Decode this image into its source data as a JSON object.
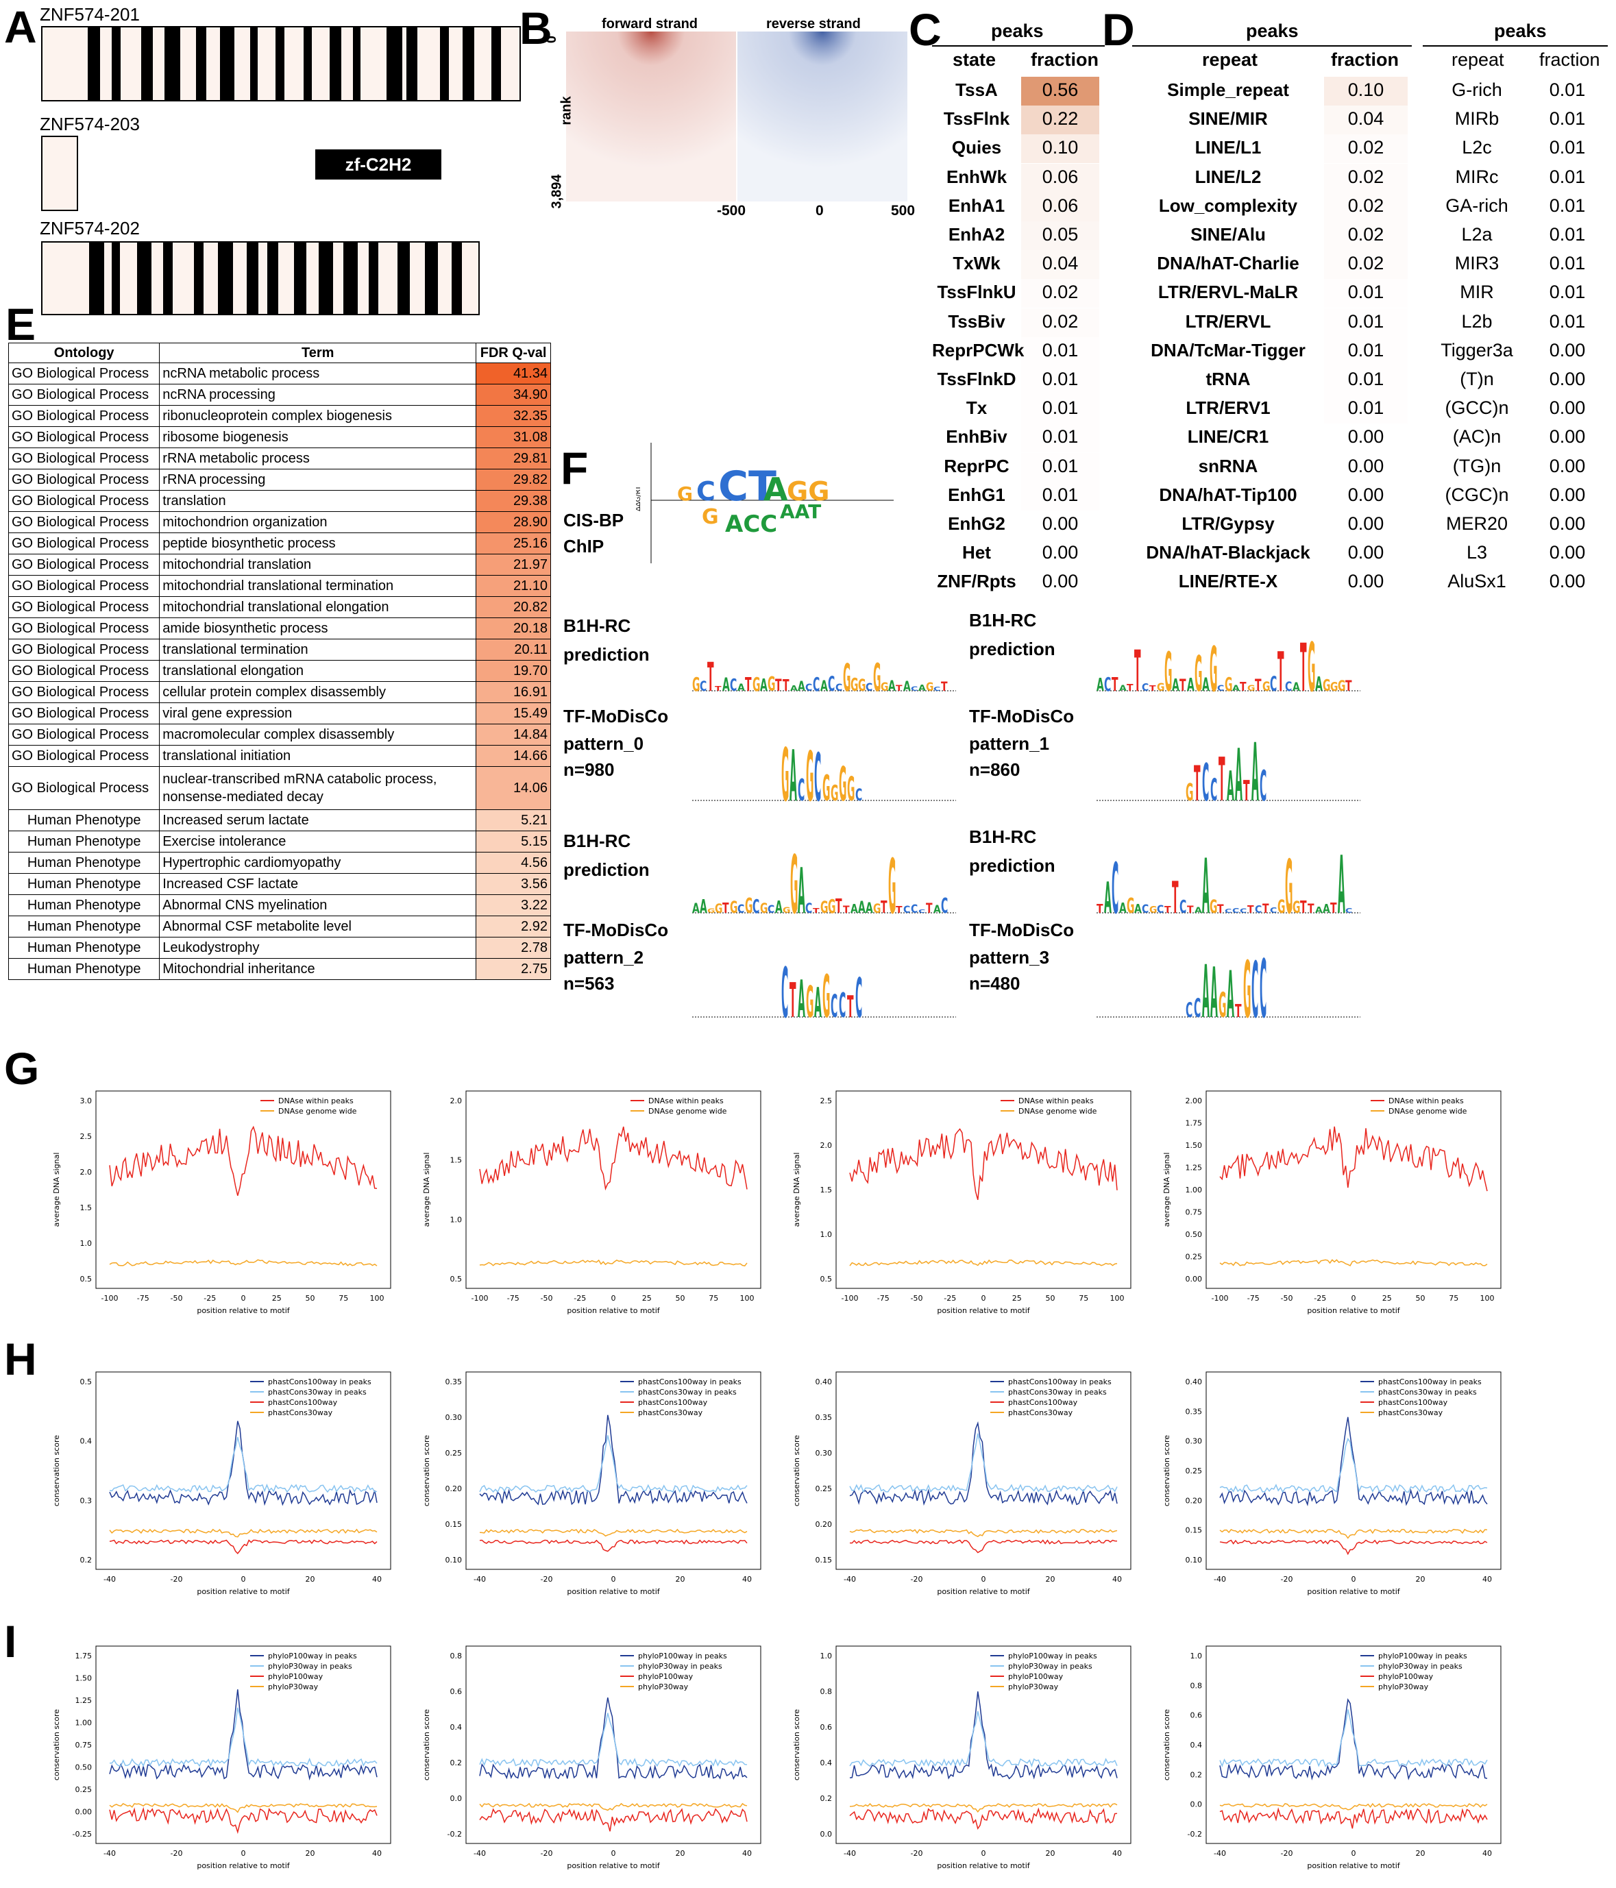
{
  "panel_letters": {
    "A": "A",
    "B": "B",
    "C": "C",
    "D": "D",
    "E": "E",
    "F": "F",
    "G": "G",
    "H": "H",
    "I": "I"
  },
  "panel_a": {
    "iso1": "ZNF574-201",
    "iso2": "ZNF574-203",
    "iso3": "ZNF574-202",
    "domain": "zf-C2H2",
    "fill": "#fdf3ee",
    "stripe": "#000000"
  },
  "panel_b": {
    "fwd": "forward strand",
    "rev": "reverse strand",
    "ylabel": "rank",
    "y0": "0",
    "ymax": "3,894",
    "xlabels": [
      "-500",
      "0",
      "500"
    ],
    "fwd_color": "#b03a2e",
    "rev_color": "#2e4f9a"
  },
  "panel_c": {
    "header": "peaks",
    "col1": "state",
    "col2": "fraction",
    "rows": [
      {
        "s": "TssA",
        "v": "0.56"
      },
      {
        "s": "TssFlnk",
        "v": "0.22"
      },
      {
        "s": "Quies",
        "v": "0.10"
      },
      {
        "s": "EnhWk",
        "v": "0.06"
      },
      {
        "s": "EnhA1",
        "v": "0.06"
      },
      {
        "s": "EnhA2",
        "v": "0.05"
      },
      {
        "s": "TxWk",
        "v": "0.04"
      },
      {
        "s": "TssFlnkU",
        "v": "0.02"
      },
      {
        "s": "TssBiv",
        "v": "0.02"
      },
      {
        "s": "ReprPCWk",
        "v": "0.01"
      },
      {
        "s": "TssFlnkD",
        "v": "0.01"
      },
      {
        "s": "Tx",
        "v": "0.01"
      },
      {
        "s": "EnhBiv",
        "v": "0.01"
      },
      {
        "s": "ReprPC",
        "v": "0.01"
      },
      {
        "s": "EnhG1",
        "v": "0.01"
      },
      {
        "s": "EnhG2",
        "v": "0.00"
      },
      {
        "s": "Het",
        "v": "0.00"
      },
      {
        "s": "ZNF/Rpts",
        "v": "0.00"
      }
    ]
  },
  "panel_d": {
    "header1": "peaks",
    "header2": "peaks",
    "col1": "repeat",
    "col2": "fraction",
    "left": [
      {
        "r": "Simple_repeat",
        "v": "0.10"
      },
      {
        "r": "SINE/MIR",
        "v": "0.04"
      },
      {
        "r": "LINE/L1",
        "v": "0.02"
      },
      {
        "r": "LINE/L2",
        "v": "0.02"
      },
      {
        "r": "Low_complexity",
        "v": "0.02"
      },
      {
        "r": "SINE/Alu",
        "v": "0.02"
      },
      {
        "r": "DNA/hAT-Charlie",
        "v": "0.02"
      },
      {
        "r": "LTR/ERVL-MaLR",
        "v": "0.01"
      },
      {
        "r": "LTR/ERVL",
        "v": "0.01"
      },
      {
        "r": "DNA/TcMar-Tigger",
        "v": "0.01"
      },
      {
        "r": "tRNA",
        "v": "0.01"
      },
      {
        "r": "LTR/ERV1",
        "v": "0.01"
      },
      {
        "r": "LINE/CR1",
        "v": "0.00"
      },
      {
        "r": "snRNA",
        "v": "0.00"
      },
      {
        "r": "DNA/hAT-Tip100",
        "v": "0.00"
      },
      {
        "r": "LTR/Gypsy",
        "v": "0.00"
      },
      {
        "r": "DNA/hAT-Blackjack",
        "v": "0.00"
      },
      {
        "r": "LINE/RTE-X",
        "v": "0.00"
      }
    ],
    "right": [
      {
        "r": "G-rich",
        "v": "0.01"
      },
      {
        "r": "MIRb",
        "v": "0.01"
      },
      {
        "r": "L2c",
        "v": "0.01"
      },
      {
        "r": "MIRc",
        "v": "0.01"
      },
      {
        "r": "GA-rich",
        "v": "0.01"
      },
      {
        "r": "L2a",
        "v": "0.01"
      },
      {
        "r": "MIR3",
        "v": "0.01"
      },
      {
        "r": "MIR",
        "v": "0.01"
      },
      {
        "r": "L2b",
        "v": "0.01"
      },
      {
        "r": "Tigger3a",
        "v": "0.00"
      },
      {
        "r": "(T)n",
        "v": "0.00"
      },
      {
        "r": "(GCC)n",
        "v": "0.00"
      },
      {
        "r": "(AC)n",
        "v": "0.00"
      },
      {
        "r": "(TG)n",
        "v": "0.00"
      },
      {
        "r": "(CGC)n",
        "v": "0.00"
      },
      {
        "r": "MER20",
        "v": "0.00"
      },
      {
        "r": "L3",
        "v": "0.00"
      },
      {
        "r": "AluSx1",
        "v": "0.00"
      }
    ]
  },
  "panel_e": {
    "headers": [
      "Ontology",
      "Term",
      "FDR Q-val"
    ],
    "rows": [
      [
        "GO Biological Process",
        "ncRNA metabolic process",
        "41.34"
      ],
      [
        "GO Biological Process",
        "ncRNA processing",
        "34.90"
      ],
      [
        "GO Biological Process",
        "ribonucleoprotein complex biogenesis",
        "32.35"
      ],
      [
        "GO Biological Process",
        "ribosome biogenesis",
        "31.08"
      ],
      [
        "GO Biological Process",
        "rRNA metabolic process",
        "29.81"
      ],
      [
        "GO Biological Process",
        "rRNA processing",
        "29.82"
      ],
      [
        "GO Biological Process",
        "translation",
        "29.38"
      ],
      [
        "GO Biological Process",
        "mitochondrion organization",
        "28.90"
      ],
      [
        "GO Biological Process",
        "peptide biosynthetic process",
        "25.16"
      ],
      [
        "GO Biological Process",
        "mitochondrial translation",
        "21.97"
      ],
      [
        "GO Biological Process",
        "mitochondrial translational termination",
        "21.10"
      ],
      [
        "GO Biological Process",
        "mitochondrial translational elongation",
        "20.82"
      ],
      [
        "GO Biological Process",
        "amide biosynthetic process",
        "20.18"
      ],
      [
        "GO Biological Process",
        "translational termination",
        "20.11"
      ],
      [
        "GO Biological Process",
        "translational elongation",
        "19.70"
      ],
      [
        "GO Biological Process",
        "cellular protein complex disassembly",
        "16.91"
      ],
      [
        "GO Biological Process",
        "viral gene expression",
        "15.49"
      ],
      [
        "GO Biological Process",
        "macromolecular complex disassembly",
        "14.84"
      ],
      [
        "GO Biological Process",
        "translational initiation",
        "14.66"
      ],
      [
        "GO Biological Process",
        "nuclear-transcribed mRNA catabolic process, nonsense-mediated decay",
        "14.06"
      ],
      [
        "Human Phenotype",
        "Increased serum lactate",
        "5.21"
      ],
      [
        "Human Phenotype",
        "Exercise intolerance",
        "5.15"
      ],
      [
        "Human Phenotype",
        "Hypertrophic cardiomyopathy",
        "4.56"
      ],
      [
        "Human Phenotype",
        "Increased CSF lactate",
        "3.56"
      ],
      [
        "Human Phenotype",
        "Abnormal CNS myelination",
        "3.22"
      ],
      [
        "Human Phenotype",
        "Abnormal CSF metabolite level",
        "2.92"
      ],
      [
        "Human Phenotype",
        "Leukodystrophy",
        "2.78"
      ],
      [
        "Human Phenotype",
        "Mitochondrial inheritance",
        "2.75"
      ]
    ]
  },
  "panel_f": {
    "cisbp": "CIS-BP",
    "chip": "ChIP",
    "b1h": "B1H-RC",
    "pred": "prediction",
    "tfm": "TF-MoDisCo",
    "p0": "pattern_0",
    "n0": "n=980",
    "p1": "pattern_1",
    "n1": "n=860",
    "p2": "pattern_2",
    "n2": "n=563",
    "p3": "pattern_3",
    "n3": "n=480",
    "dg_label": "ΔΔG/RT"
  },
  "panel_g": {
    "legend": [
      "DNAse within peaks",
      "DNAse genome wide"
    ],
    "ylabel": "average DNA signal",
    "xlabel": "position relative to motif",
    "colors": [
      "#e8241c",
      "#f5a623"
    ],
    "xticks": [
      "-100",
      "-75",
      "-50",
      "-25",
      "0",
      "25",
      "50",
      "75",
      "100"
    ],
    "yticks": [
      [
        "0.5",
        "1.0",
        "1.5",
        "2.0",
        "2.5",
        "3.0"
      ],
      [
        "0.5",
        "1.0",
        "1.5",
        "2.0"
      ],
      [
        "0.5",
        "1.0",
        "1.5",
        "2.0",
        "2.5"
      ],
      [
        "0.00",
        "0.25",
        "0.50",
        "0.75",
        "1.00",
        "1.25",
        "1.50",
        "1.75",
        "2.00"
      ]
    ]
  },
  "panel_h": {
    "legend": [
      "phastCons100way in peaks",
      "phastCons30way in peaks",
      "phastCons100way",
      "phastCons30way"
    ],
    "ylabel": "conservation score",
    "xlabel": "position relative to motif",
    "colors": [
      "#1f3a93",
      "#87c3f0",
      "#e8241c",
      "#f5a623"
    ],
    "xticks": [
      "-40",
      "-20",
      "0",
      "20",
      "40"
    ],
    "yticks": [
      [
        "0.2",
        "0.3",
        "0.4",
        "0.5"
      ],
      [
        "0.10",
        "0.15",
        "0.20",
        "0.25",
        "0.30",
        "0.35"
      ],
      [
        "0.15",
        "0.20",
        "0.25",
        "0.30",
        "0.35",
        "0.40"
      ],
      [
        "0.10",
        "0.15",
        "0.20",
        "0.25",
        "0.30",
        "0.35",
        "0.40"
      ]
    ]
  },
  "panel_i": {
    "legend": [
      "phyloP100way in peaks",
      "phyloP30way in peaks",
      "phyloP100way",
      "phyloP30way"
    ],
    "ylabel": "conservation score",
    "xlabel": "position relative to motif",
    "colors": [
      "#1f3a93",
      "#87c3f0",
      "#e8241c",
      "#f5a623"
    ],
    "xticks": [
      "-40",
      "-20",
      "0",
      "20",
      "40"
    ],
    "yticks": [
      [
        "-0.25",
        "0.00",
        "0.25",
        "0.50",
        "0.75",
        "1.00",
        "1.25",
        "1.50",
        "1.75"
      ],
      [
        "-0.2",
        "0.0",
        "0.2",
        "0.4",
        "0.6",
        "0.8"
      ],
      [
        "0.0",
        "0.2",
        "0.4",
        "0.6",
        "0.8",
        "1.0"
      ],
      [
        "-0.2",
        "0.0",
        "0.2",
        "0.4",
        "0.6",
        "0.8",
        "1.0"
      ]
    ]
  }
}
